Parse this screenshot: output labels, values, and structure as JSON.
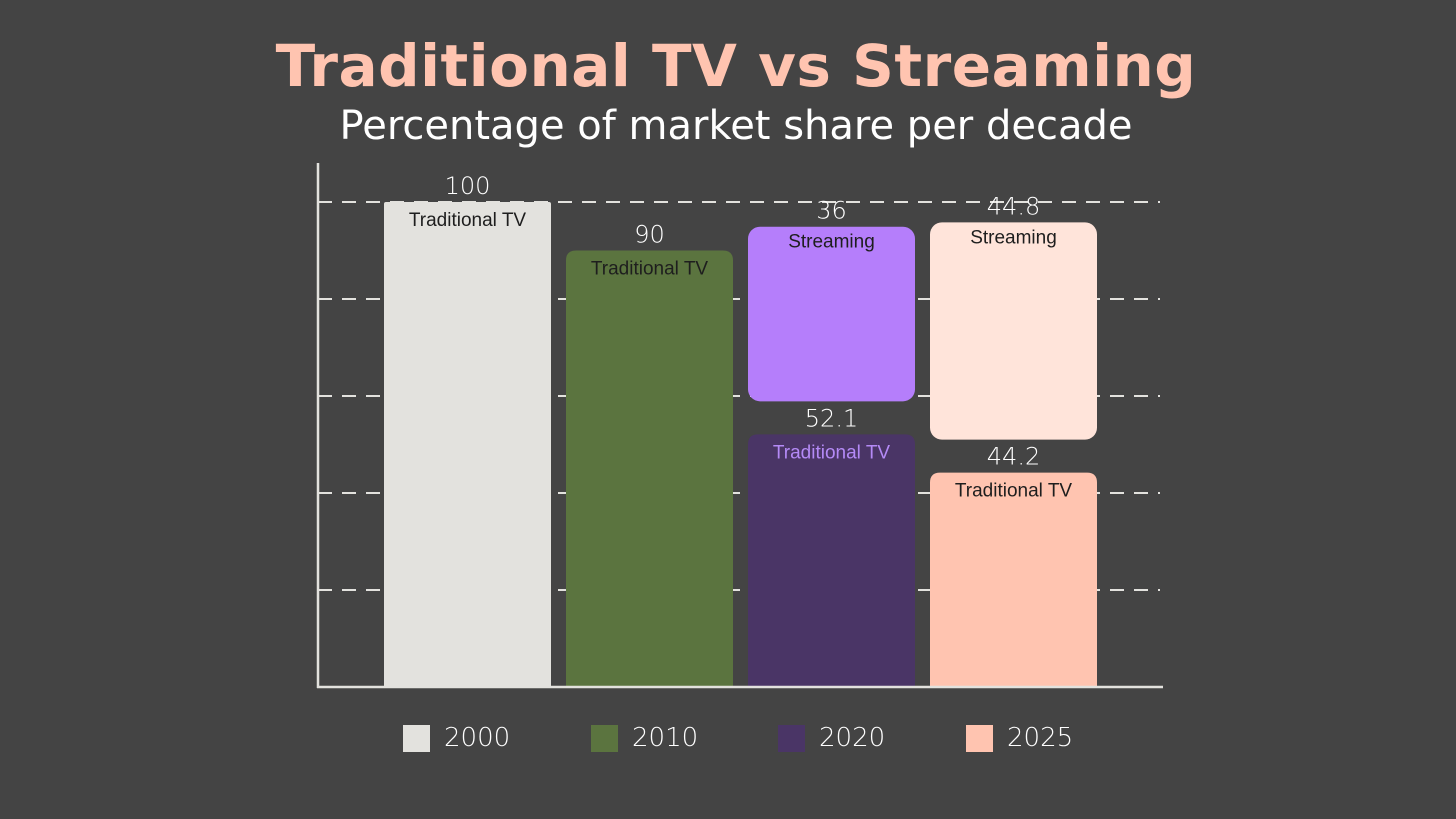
{
  "title": "Traditional TV vs Streaming",
  "subtitle": "Percentage of market share per decade",
  "chart_data": {
    "type": "bar",
    "stacked": true,
    "title": "Traditional TV vs Streaming",
    "subtitle": "Percentage of market share per decade",
    "xlabel": "",
    "ylabel": "",
    "ylim": [
      0,
      108
    ],
    "grid": true,
    "categories": [
      "2000",
      "2010",
      "2020",
      "2025"
    ],
    "series": [
      {
        "name": "Traditional TV",
        "values": [
          100,
          90,
          52.1,
          44.2
        ],
        "labels": [
          "Traditional TV",
          "Traditional TV",
          "Traditional TV",
          "Traditional TV"
        ],
        "value_labels": [
          "100",
          "90",
          "52.1",
          "44.2"
        ]
      },
      {
        "name": "Streaming",
        "values": [
          null,
          null,
          36,
          44.8
        ],
        "labels": [
          "",
          "",
          "Streaming",
          "Streaming"
        ],
        "value_labels": [
          "",
          "",
          "36",
          "44.8"
        ]
      }
    ],
    "colors": {
      "traditional": [
        "#e3e2de",
        "#5b743f",
        "#4a3566",
        "#ffc4b0"
      ],
      "streaming": [
        "",
        "",
        "#b57efb",
        "#ffe4da"
      ],
      "label_text": [
        "#1e1e1e",
        "#1e1e1e",
        "#b48af6",
        "#1e1e1e"
      ]
    },
    "legend": {
      "position": "bottom",
      "entries": [
        "2000",
        "2010",
        "2020",
        "2025"
      ],
      "colors": [
        "#e3e2de",
        "#5b743f",
        "#4a3566",
        "#ffc4b0"
      ]
    }
  }
}
